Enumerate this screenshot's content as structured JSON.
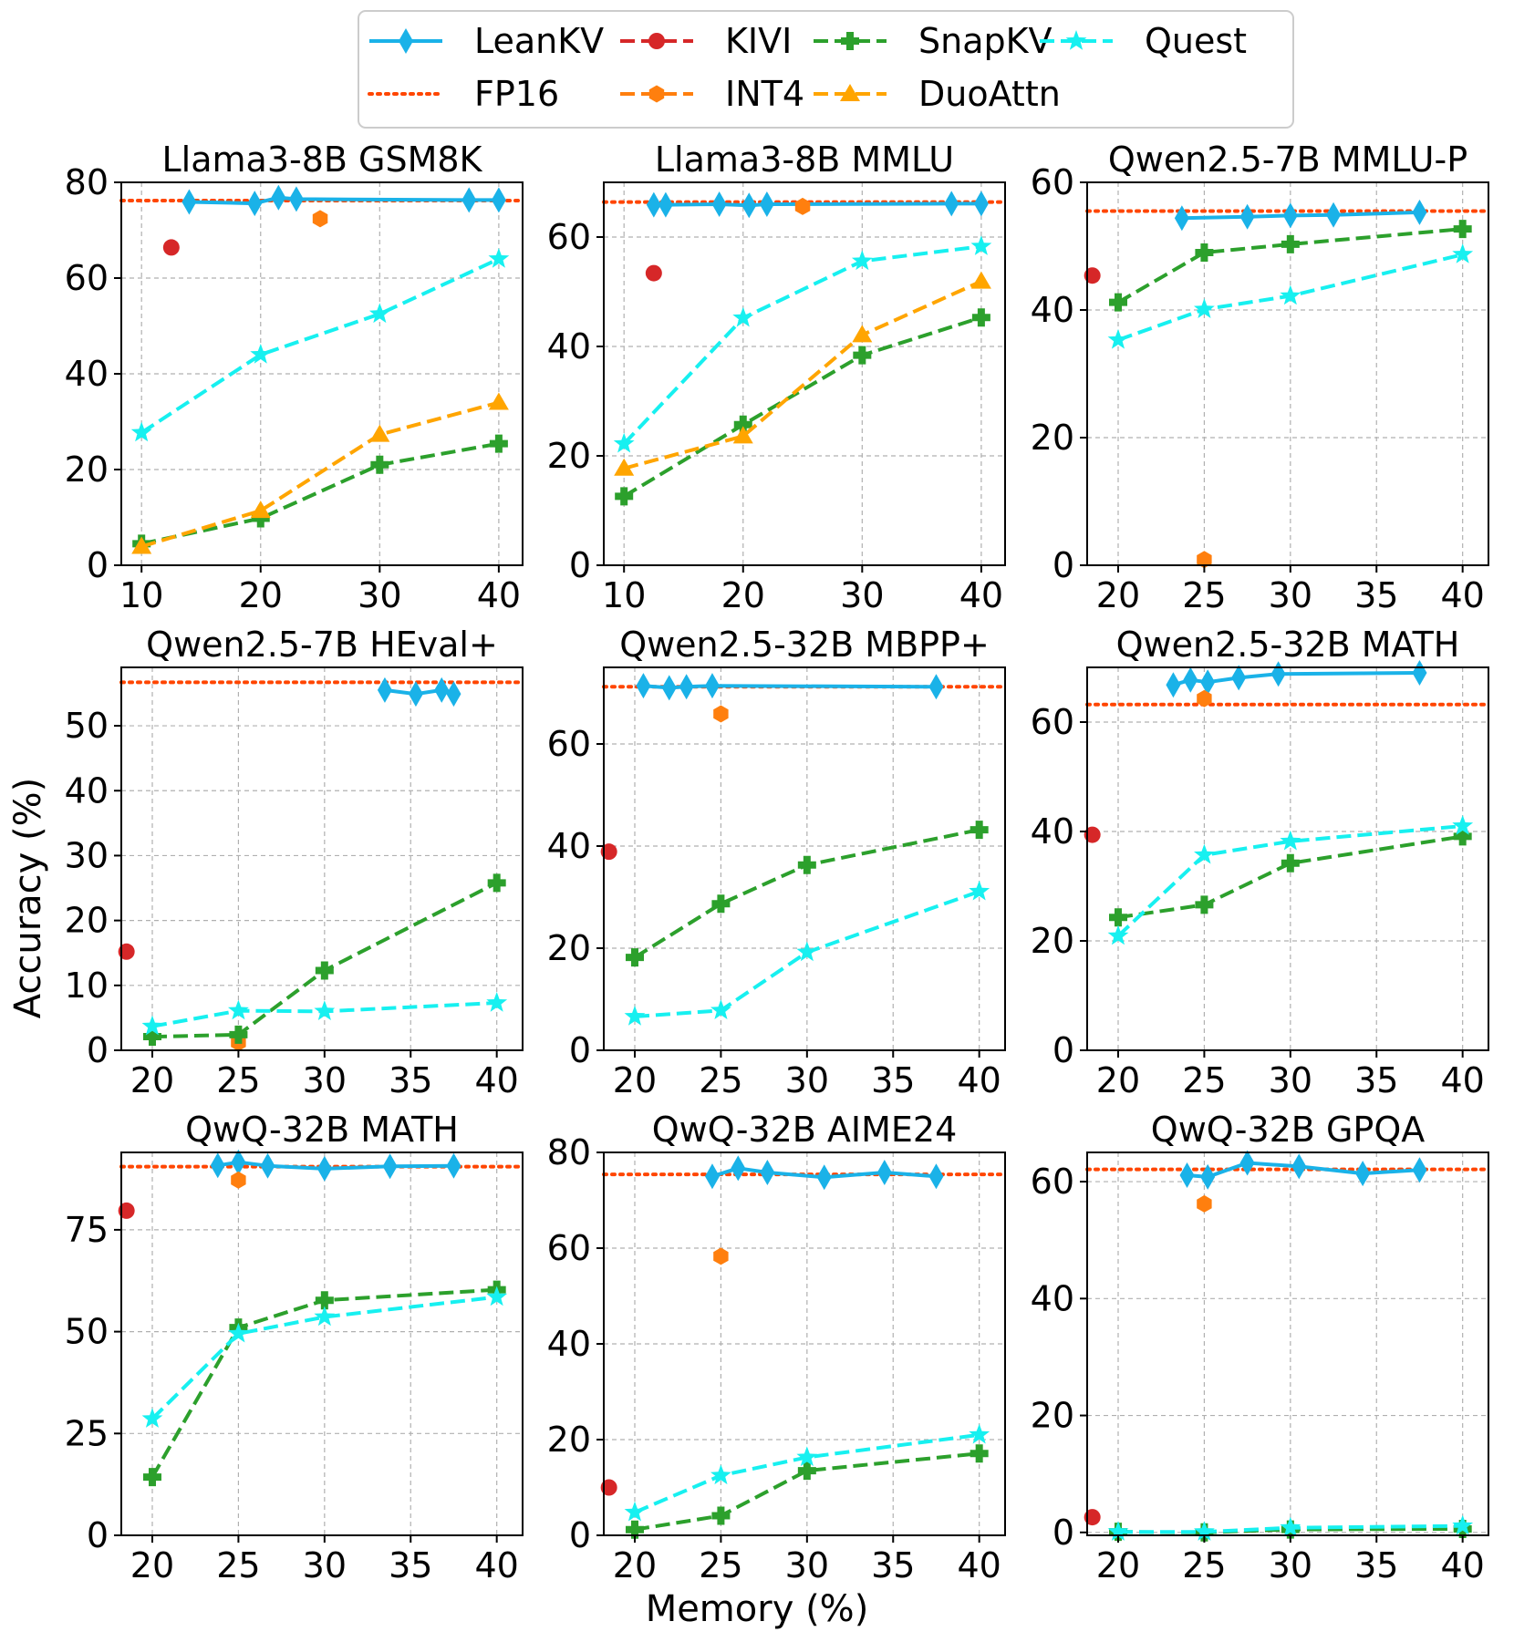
{
  "figure": {
    "xlabel": "Memory (%)",
    "ylabel": "Accuracy (%)"
  },
  "legend": {
    "placement": "top-center",
    "entries": [
      {
        "key": "leankv",
        "label": "LeanKV"
      },
      {
        "key": "kivi",
        "label": "KIVI"
      },
      {
        "key": "snapkv",
        "label": "SnapKV"
      },
      {
        "key": "quest",
        "label": "Quest"
      },
      {
        "key": "fp16",
        "label": "FP16"
      },
      {
        "key": "int4",
        "label": "INT4"
      },
      {
        "key": "duoattn",
        "label": "DuoAttn"
      }
    ]
  },
  "styles": {
    "leankv": {
      "color": "#1ab2e8",
      "dash": "solid",
      "marker": "diamond",
      "width": 4
    },
    "kivi": {
      "color": "#d62728",
      "dash": "dashed",
      "marker": "circle",
      "width": 4
    },
    "snapkv": {
      "color": "#2ca02c",
      "dash": "dashed",
      "marker": "plus",
      "width": 4
    },
    "quest": {
      "color": "#17f0f0",
      "dash": "dashed",
      "marker": "star",
      "width": 4
    },
    "fp16": {
      "color": "#ff4500",
      "dash": "dotted",
      "marker": "none",
      "width": 4
    },
    "int4": {
      "color": "#ff7f0e",
      "dash": "dashed",
      "marker": "hexagon",
      "width": 4
    },
    "duoattn": {
      "color": "#ffa500",
      "dash": "dashed",
      "marker": "triangle",
      "width": 4
    }
  },
  "chart_data": [
    {
      "type": "line",
      "title": "Llama3-8B GSM8K",
      "xlim": [
        8.3,
        42
      ],
      "ylim": [
        0,
        80
      ],
      "xticks": [
        10,
        20,
        30,
        40
      ],
      "yticks": [
        0,
        20,
        40,
        60,
        80
      ],
      "fp16": 76.2,
      "series": [
        {
          "key": "leankv",
          "x": [
            14,
            19.5,
            21.5,
            23,
            37.5,
            40
          ],
          "y": [
            75.9,
            75.6,
            76.8,
            76.5,
            76.3,
            76.3
          ]
        },
        {
          "key": "kivi",
          "x": [
            12.5
          ],
          "y": [
            66.4
          ]
        },
        {
          "key": "int4",
          "x": [
            25
          ],
          "y": [
            72.4
          ]
        },
        {
          "key": "snapkv",
          "x": [
            10,
            20,
            30,
            40
          ],
          "y": [
            4.5,
            9.8,
            21,
            25.4
          ]
        },
        {
          "key": "quest",
          "x": [
            10,
            20,
            30,
            40
          ],
          "y": [
            27.7,
            44,
            52.5,
            64
          ]
        },
        {
          "key": "duoattn",
          "x": [
            10,
            20,
            30,
            40
          ],
          "y": [
            3.9,
            11.4,
            27.3,
            34
          ]
        }
      ]
    },
    {
      "type": "line",
      "title": "Llama3-8B MMLU",
      "xlim": [
        8.3,
        42
      ],
      "ylim": [
        0,
        70
      ],
      "xticks": [
        10,
        20,
        30,
        40
      ],
      "yticks": [
        0,
        20,
        40,
        60
      ],
      "fp16": 66.4,
      "series": [
        {
          "key": "leankv",
          "x": [
            12.5,
            13.5,
            18,
            20.5,
            22,
            37.5,
            40
          ],
          "y": [
            65.9,
            65.9,
            66,
            65.8,
            66,
            66.1,
            66.1
          ]
        },
        {
          "key": "kivi",
          "x": [
            12.5
          ],
          "y": [
            53.4
          ]
        },
        {
          "key": "int4",
          "x": [
            25
          ],
          "y": [
            65.6
          ]
        },
        {
          "key": "snapkv",
          "x": [
            10,
            20,
            30,
            40
          ],
          "y": [
            12.6,
            25.7,
            38.4,
            45.3
          ]
        },
        {
          "key": "quest",
          "x": [
            10,
            20,
            30,
            40
          ],
          "y": [
            22.2,
            45.2,
            55.6,
            58.3
          ]
        },
        {
          "key": "duoattn",
          "x": [
            10,
            20,
            30,
            40
          ],
          "y": [
            17.7,
            23.6,
            42.1,
            51.9
          ]
        }
      ]
    },
    {
      "type": "line",
      "title": "Qwen2.5-7B MMLU-P",
      "xlim": [
        18.2,
        41.5
      ],
      "ylim": [
        0,
        60
      ],
      "xticks": [
        20,
        25,
        30,
        35,
        40
      ],
      "yticks": [
        0,
        20,
        40,
        60
      ],
      "fp16": 55.5,
      "series": [
        {
          "key": "leankv",
          "x": [
            23.7,
            27.5,
            30,
            32.5,
            37.5
          ],
          "y": [
            54.4,
            54.6,
            54.8,
            54.9,
            55.3
          ]
        },
        {
          "key": "kivi",
          "x": [
            18.5
          ],
          "y": [
            45.4
          ]
        },
        {
          "key": "int4",
          "x": [
            25
          ],
          "y": [
            0.9
          ]
        },
        {
          "key": "snapkv",
          "x": [
            20,
            25,
            30,
            40
          ],
          "y": [
            41.2,
            49,
            50.3,
            52.7
          ]
        },
        {
          "key": "quest",
          "x": [
            20,
            25,
            30,
            40
          ],
          "y": [
            35.3,
            40.1,
            42.2,
            48.7
          ]
        }
      ]
    },
    {
      "type": "line",
      "title": "Qwen2.5-7B HEval+",
      "xlim": [
        18.2,
        41.5
      ],
      "ylim": [
        0,
        59
      ],
      "xticks": [
        20,
        25,
        30,
        35,
        40
      ],
      "yticks": [
        0,
        10,
        20,
        30,
        40,
        50
      ],
      "fp16": 56.7,
      "series": [
        {
          "key": "leankv",
          "x": [
            33.5,
            35.3,
            36.8,
            37.5
          ],
          "y": [
            55.5,
            54.9,
            55.5,
            54.9
          ]
        },
        {
          "key": "kivi",
          "x": [
            18.5
          ],
          "y": [
            15.2
          ]
        },
        {
          "key": "int4",
          "x": [
            25
          ],
          "y": [
            1.2
          ]
        },
        {
          "key": "snapkv",
          "x": [
            20,
            25,
            30,
            40
          ],
          "y": [
            2.1,
            2.4,
            12.3,
            25.8
          ]
        },
        {
          "key": "quest",
          "x": [
            20,
            25,
            30,
            40
          ],
          "y": [
            3.7,
            6.1,
            6,
            7.3
          ]
        }
      ]
    },
    {
      "type": "line",
      "title": "Qwen2.5-32B MBPP+",
      "xlim": [
        18.2,
        41.5
      ],
      "ylim": [
        0,
        75
      ],
      "xticks": [
        20,
        25,
        30,
        35,
        40
      ],
      "yticks": [
        0,
        20,
        40,
        60
      ],
      "fp16": 71.2,
      "series": [
        {
          "key": "leankv",
          "x": [
            20.5,
            22,
            23,
            24.5,
            37.5
          ],
          "y": [
            71.4,
            71,
            71.2,
            71.4,
            71.2
          ]
        },
        {
          "key": "kivi",
          "x": [
            18.5
          ],
          "y": [
            38.9
          ]
        },
        {
          "key": "int4",
          "x": [
            25
          ],
          "y": [
            65.9
          ]
        },
        {
          "key": "snapkv",
          "x": [
            20,
            25,
            30,
            40
          ],
          "y": [
            18.2,
            28.7,
            36.3,
            43.2
          ]
        },
        {
          "key": "quest",
          "x": [
            20,
            25,
            30,
            40
          ],
          "y": [
            6.6,
            7.8,
            19.2,
            31.1
          ]
        }
      ]
    },
    {
      "type": "line",
      "title": "Qwen2.5-32B MATH",
      "xlim": [
        18.2,
        41.5
      ],
      "ylim": [
        0,
        70
      ],
      "xticks": [
        20,
        25,
        30,
        35,
        40
      ],
      "yticks": [
        0,
        20,
        40,
        60
      ],
      "fp16": 63.2,
      "series": [
        {
          "key": "leankv",
          "x": [
            23.2,
            24.2,
            25.2,
            27,
            29.3,
            37.5
          ],
          "y": [
            66.8,
            67.7,
            67.3,
            68.1,
            68.8,
            69
          ]
        },
        {
          "key": "kivi",
          "x": [
            18.5
          ],
          "y": [
            39.4
          ]
        },
        {
          "key": "int4",
          "x": [
            25
          ],
          "y": [
            64.3
          ]
        },
        {
          "key": "snapkv",
          "x": [
            20,
            25,
            30,
            40
          ],
          "y": [
            24.3,
            26.6,
            34.2,
            39.1
          ]
        },
        {
          "key": "quest",
          "x": [
            20,
            25,
            30,
            40
          ],
          "y": [
            20.9,
            35.7,
            38.2,
            41
          ]
        }
      ]
    },
    {
      "type": "line",
      "title": "QwQ-32B MATH",
      "xlim": [
        18.2,
        41.5
      ],
      "ylim": [
        0,
        94
      ],
      "xticks": [
        20,
        25,
        30,
        35,
        40
      ],
      "yticks": [
        0,
        25,
        50,
        75
      ],
      "fp16": 90.5,
      "series": [
        {
          "key": "leankv",
          "x": [
            23.8,
            25,
            26.7,
            30,
            33.8,
            37.5
          ],
          "y": [
            90.8,
            91.6,
            90.7,
            90,
            90.6,
            90.7
          ]
        },
        {
          "key": "kivi",
          "x": [
            18.5
          ],
          "y": [
            79.7
          ]
        },
        {
          "key": "int4",
          "x": [
            25
          ],
          "y": [
            87.2
          ]
        },
        {
          "key": "snapkv",
          "x": [
            20,
            25,
            30,
            40
          ],
          "y": [
            14.3,
            51,
            57.7,
            60.3
          ]
        },
        {
          "key": "quest",
          "x": [
            20,
            25,
            30,
            40
          ],
          "y": [
            28.6,
            49.5,
            53.6,
            58.5
          ]
        }
      ]
    },
    {
      "type": "line",
      "title": "QwQ-32B AIME24",
      "xlim": [
        18.2,
        41.5
      ],
      "ylim": [
        0,
        80
      ],
      "xticks": [
        20,
        25,
        30,
        35,
        40
      ],
      "yticks": [
        0,
        20,
        40,
        60,
        80
      ],
      "fp16": 75.4,
      "series": [
        {
          "key": "leankv",
          "x": [
            24.5,
            26,
            27.7,
            31,
            34.5,
            37.5
          ],
          "y": [
            75,
            76.7,
            75.8,
            74.8,
            75.8,
            75
          ]
        },
        {
          "key": "kivi",
          "x": [
            18.5
          ],
          "y": [
            10
          ]
        },
        {
          "key": "int4",
          "x": [
            25
          ],
          "y": [
            58.3
          ]
        },
        {
          "key": "snapkv",
          "x": [
            20,
            25,
            30,
            40
          ],
          "y": [
            1.2,
            4.1,
            13.5,
            17.1
          ]
        },
        {
          "key": "quest",
          "x": [
            20,
            25,
            30,
            40
          ],
          "y": [
            4.8,
            12.5,
            16.3,
            21
          ]
        }
      ]
    },
    {
      "type": "line",
      "title": "QwQ-32B GPQA",
      "xlim": [
        18.2,
        41.5
      ],
      "ylim": [
        -0.5,
        65
      ],
      "xticks": [
        20,
        25,
        30,
        35,
        40
      ],
      "yticks": [
        0,
        20,
        40,
        60
      ],
      "fp16": 62.1,
      "series": [
        {
          "key": "leankv",
          "x": [
            24,
            25.2,
            27.5,
            30.5,
            34.2,
            37.5
          ],
          "y": [
            61.1,
            60.8,
            63.2,
            62.6,
            61.4,
            62
          ]
        },
        {
          "key": "kivi",
          "x": [
            18.5
          ],
          "y": [
            2.6
          ]
        },
        {
          "key": "int4",
          "x": [
            25
          ],
          "y": [
            56.2
          ]
        },
        {
          "key": "snapkv",
          "x": [
            20,
            25,
            30,
            40
          ],
          "y": [
            0.1,
            0,
            0.5,
            0.6
          ]
        },
        {
          "key": "quest",
          "x": [
            20,
            25,
            30,
            40
          ],
          "y": [
            0.1,
            0.1,
            0.8,
            1.1
          ]
        }
      ]
    }
  ]
}
